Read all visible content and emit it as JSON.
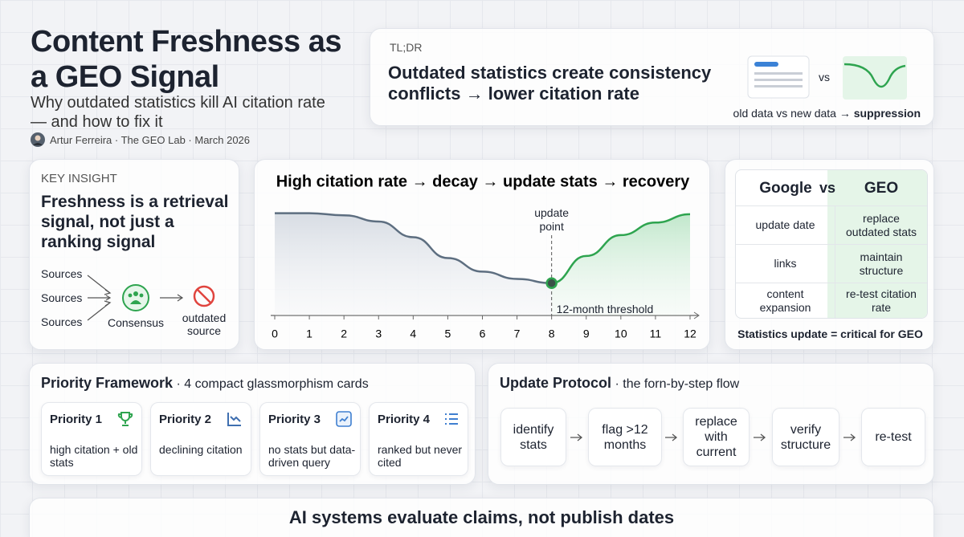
{
  "header": {
    "title": "Content Freshness as a GEO Signal",
    "subtitle": "Why outdated statistics kill AI citation rate — and how to fix it",
    "byline": "Artur Ferreira · The GEO Lab · March 2026"
  },
  "tldr": {
    "label": "TL;DR",
    "text": "Outdated statistics create consistency conflicts → lower citation rate",
    "vs": "vs",
    "caption": "old data vs new data →",
    "caption_emphasis": "suppression"
  },
  "insight": {
    "label": "KEY INSIGHT",
    "text": "Freshness is a retrieval signal, not just a ranking signal",
    "sources": [
      "Sources",
      "Sources",
      "Sources"
    ],
    "consensus": "Consensus",
    "outcome": "outdated source"
  },
  "chart_data": {
    "type": "line",
    "title": "High citation rate → decay → update stats → recovery",
    "x": [
      0,
      1,
      2,
      3,
      4,
      5,
      6,
      7,
      8,
      9,
      10,
      11,
      12
    ],
    "values": [
      98,
      98,
      96,
      90,
      75,
      55,
      42,
      35,
      31,
      57,
      77,
      89,
      97
    ],
    "xlim": [
      0,
      12
    ],
    "xticks": [
      0,
      1,
      2,
      3,
      4,
      5,
      6,
      7,
      8,
      9,
      10,
      11,
      12
    ],
    "ylim": [
      0,
      100
    ],
    "update_x": 8,
    "colors": {
      "before": "#5d6e80",
      "after": "#2ea44f"
    },
    "annotations": {
      "update": "update point",
      "threshold": "12-month threshold"
    }
  },
  "comparison": {
    "headers": [
      "Google",
      "vs",
      "GEO"
    ],
    "rows": [
      [
        "update date",
        "replace outdated stats"
      ],
      [
        "links",
        "maintain structure"
      ],
      [
        "content expansion",
        "re-test citation rate"
      ]
    ],
    "footer": "Statistics update = critical for GEO"
  },
  "priority": {
    "title": "Priority Framework",
    "subtitle": "· 4 compact glassmorphism cards",
    "cards": [
      {
        "title": "Priority 1",
        "text": "high citation + old stats"
      },
      {
        "title": "Priority 2",
        "text": "declining citation"
      },
      {
        "title": "Priority 3",
        "text": "no stats but data-driven query"
      },
      {
        "title": "Priority 4",
        "text": "ranked but never cited"
      }
    ]
  },
  "protocol": {
    "title": "Update Protocol",
    "subtitle": "· the forn-by-step flow",
    "steps": [
      "identify stats",
      "flag >12 months",
      "replace with current",
      "verify structure",
      "re-test"
    ]
  },
  "banner": "AI systems evaluate claims, not publish dates"
}
